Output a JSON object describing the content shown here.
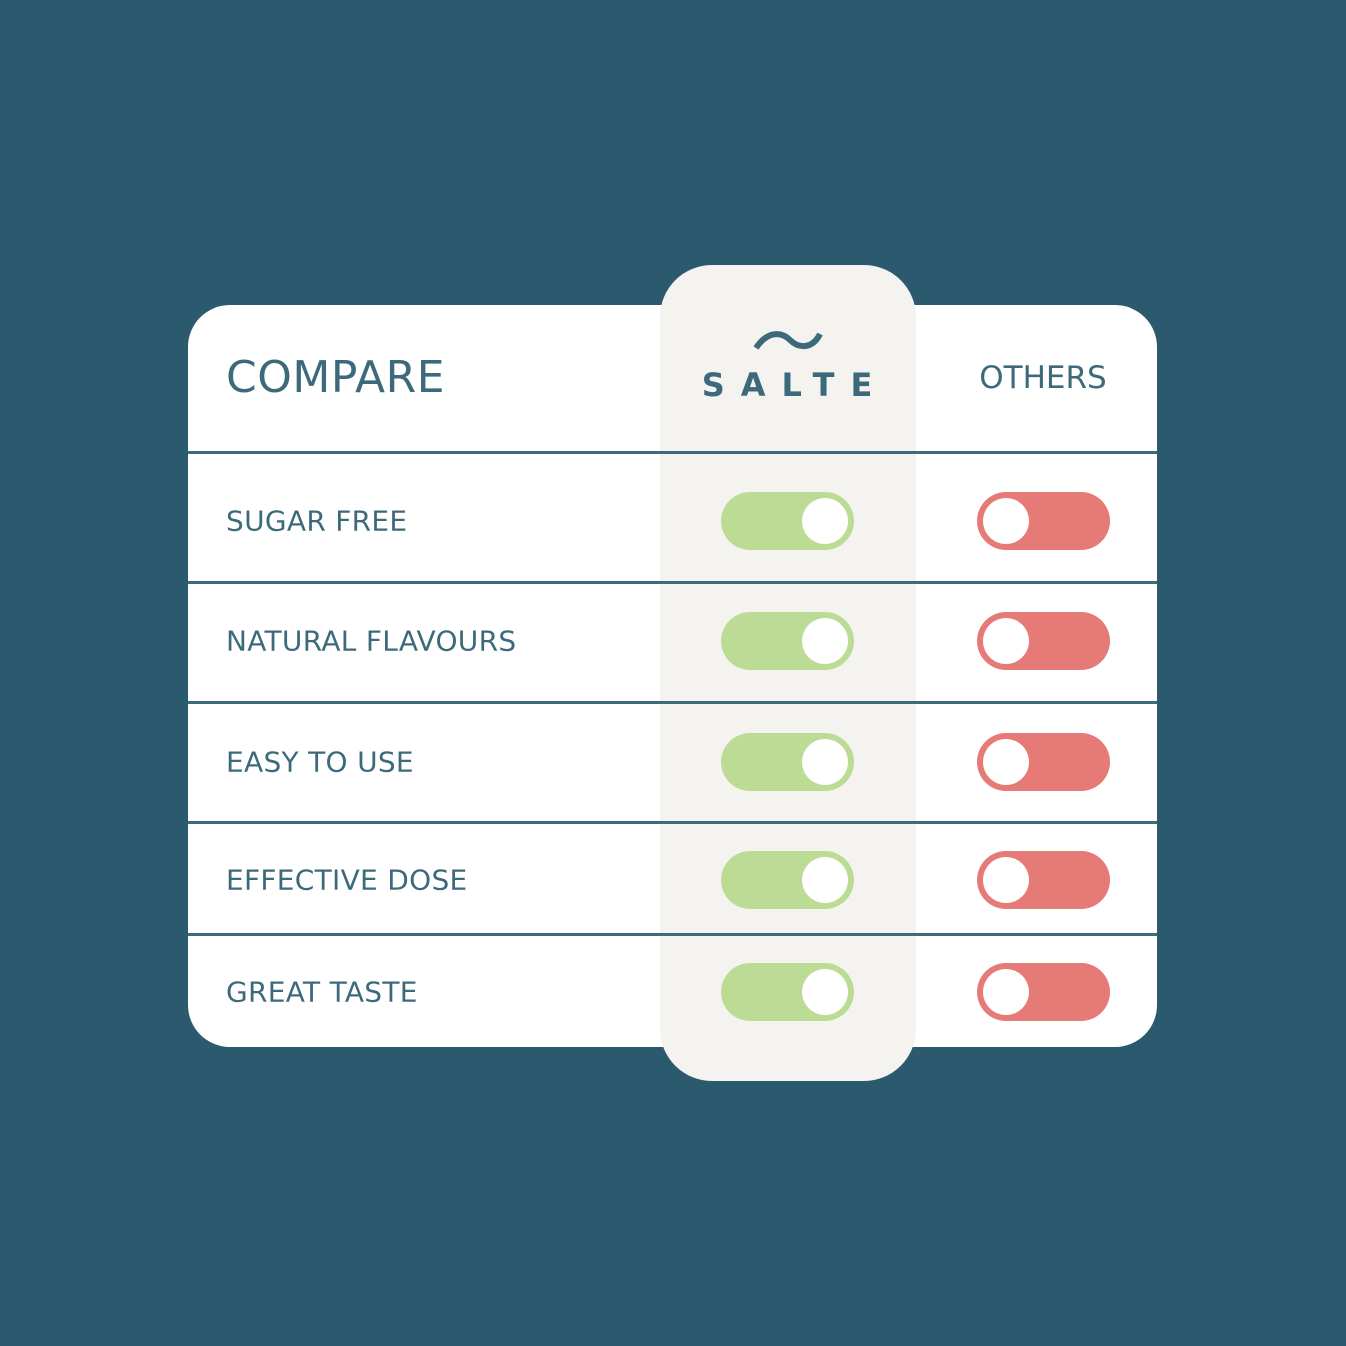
{
  "header": {
    "title": "COMPARE",
    "brand_name": "SALTE",
    "brand_icon": "wave-tilde-icon",
    "others_label": "OTHERS"
  },
  "colors": {
    "background": "#2b5a6e",
    "text": "#3d6a7b",
    "toggle_on": "#bcdc96",
    "toggle_off": "#e57a76",
    "highlight_column": "#f4f3f0"
  },
  "rows": [
    {
      "label": "SUGAR FREE",
      "salte": true,
      "others": false
    },
    {
      "label": "NATURAL FLAVOURS",
      "salte": true,
      "others": false
    },
    {
      "label": "EASY TO USE",
      "salte": true,
      "others": false
    },
    {
      "label": "EFFECTIVE DOSE",
      "salte": true,
      "others": false
    },
    {
      "label": "GREAT TASTE",
      "salte": true,
      "others": false
    }
  ]
}
